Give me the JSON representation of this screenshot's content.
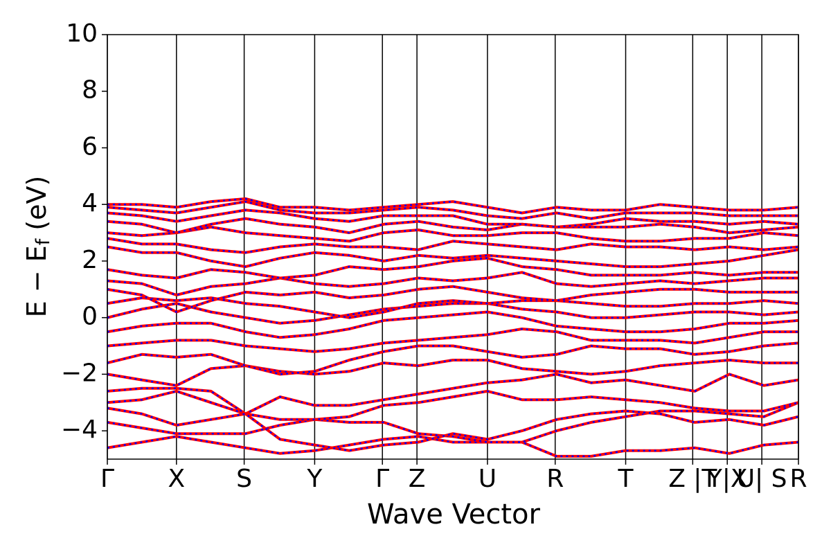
{
  "chart_data": {
    "type": "line",
    "xlabel": "Wave Vector",
    "ylabel": [
      "E − E",
      "f",
      " (eV)"
    ],
    "xlim": [
      0,
      10
    ],
    "ylim": [
      -5,
      10
    ],
    "yticks": [
      {
        "value": -4,
        "label": "−4"
      },
      {
        "value": -2,
        "label": "−2"
      },
      0,
      2,
      4,
      6,
      8,
      10
    ],
    "xticks": [
      {
        "value": 0,
        "label": "Γ"
      },
      {
        "value": 1.0,
        "label": "X"
      },
      {
        "value": 1.98,
        "label": "S"
      },
      {
        "value": 3.0,
        "label": "Y"
      },
      {
        "value": 3.98,
        "label": "Γ"
      },
      {
        "value": 4.48,
        "label": "Z"
      },
      {
        "value": 5.5,
        "label": "U"
      },
      {
        "value": 6.48,
        "label": "R"
      },
      {
        "value": 7.5,
        "label": "T"
      },
      {
        "value": 8.47,
        "label": "Z |T"
      },
      {
        "value": 8.97,
        "label": "Y|X"
      },
      {
        "value": 9.47,
        "label": "U| S"
      },
      {
        "value": 10.0,
        "label": "R"
      }
    ],
    "grid": "x",
    "line_color": "#ff0000",
    "dash_color": "#0000ff",
    "x": [
      0,
      0.5,
      1,
      1.5,
      2,
      2.5,
      3,
      3.5,
      4,
      4.5,
      5,
      5.5,
      6,
      6.5,
      7,
      7.5,
      8,
      8.5,
      9,
      9.5,
      10
    ],
    "bands": [
      {
        "values": [
          -4.6,
          -4.4,
          -4.2,
          -4.4,
          -4.6,
          -4.8,
          -4.7,
          -4.5,
          -4.3,
          -4.2,
          -4.4,
          -4.4,
          -4.4,
          -4.9,
          -4.9,
          -4.7,
          -4.7,
          -4.6,
          -4.8,
          -4.5,
          -4.4
        ]
      },
      {
        "values": [
          -3.7,
          -3.9,
          -4.1,
          -4.1,
          -4.1,
          -3.8,
          -3.6,
          -3.7,
          -3.7,
          -4.1,
          -4.2,
          -4.4,
          -4.4,
          -4.0,
          -3.7,
          -3.5,
          -3.3,
          -3.3,
          -3.4,
          -3.5,
          -3.0
        ]
      },
      {
        "values": [
          -3.0,
          -2.9,
          -2.6,
          -3.0,
          -3.4,
          -3.6,
          -3.6,
          -3.5,
          -3.1,
          -3.0,
          -2.8,
          -2.6,
          -2.9,
          -2.9,
          -2.8,
          -2.9,
          -3.0,
          -3.2,
          -3.3,
          -3.3,
          -3.0
        ]
      },
      {
        "values": [
          -2.6,
          -2.5,
          -2.5,
          -2.6,
          -3.4,
          -2.8,
          -3.1,
          -3.1,
          -2.9,
          -2.7,
          -2.5,
          -2.3,
          -2.2,
          -2.0,
          -2.3,
          -2.2,
          -2.4,
          -2.6,
          -2.0,
          -2.4,
          -2.2
        ]
      },
      {
        "values": [
          -2.0,
          -2.2,
          -2.4,
          -1.8,
          -1.7,
          -1.9,
          -2.0,
          -1.9,
          -1.6,
          -1.7,
          -1.5,
          -1.5,
          -1.8,
          -1.9,
          -2.0,
          -1.9,
          -1.7,
          -1.6,
          -1.5,
          -1.6,
          -1.6
        ]
      },
      {
        "values": [
          -1.6,
          -1.3,
          -1.4,
          -1.3,
          -1.7,
          -2.0,
          -1.9,
          -1.5,
          -1.2,
          -1.0,
          -1.0,
          -1.2,
          -1.4,
          -1.3,
          -1.0,
          -1.1,
          -1.1,
          -1.3,
          -1.2,
          -1.0,
          -0.9
        ]
      },
      {
        "values": [
          -1.0,
          -0.9,
          -0.8,
          -0.8,
          -1.0,
          -1.1,
          -1.2,
          -1.1,
          -0.9,
          -0.8,
          -0.7,
          -0.6,
          -0.4,
          -0.5,
          -0.8,
          -0.8,
          -0.8,
          -0.9,
          -0.7,
          -0.5,
          -0.5
        ]
      },
      {
        "values": [
          -0.5,
          -0.3,
          -0.2,
          -0.2,
          -0.5,
          -0.7,
          -0.6,
          -0.4,
          -0.1,
          0.0,
          0.1,
          0.2,
          0.0,
          -0.3,
          -0.4,
          -0.5,
          -0.5,
          -0.4,
          -0.2,
          -0.2,
          -0.1
        ]
      },
      {
        "values": [
          0.0,
          0.3,
          0.5,
          0.2,
          0.0,
          -0.2,
          -0.1,
          0.1,
          0.3,
          0.4,
          0.5,
          0.5,
          0.3,
          0.2,
          0.0,
          0.0,
          0.1,
          0.2,
          0.2,
          0.1,
          0.2
        ]
      },
      {
        "values": [
          0.5,
          0.7,
          0.6,
          0.7,
          0.5,
          0.4,
          0.2,
          0.0,
          0.2,
          0.5,
          0.6,
          0.5,
          0.6,
          0.6,
          0.5,
          0.4,
          0.4,
          0.5,
          0.5,
          0.6,
          0.5
        ]
      },
      {
        "values": [
          1.0,
          0.8,
          0.2,
          0.6,
          0.9,
          0.8,
          0.9,
          0.7,
          0.8,
          1.0,
          1.1,
          0.9,
          0.7,
          0.6,
          0.8,
          0.9,
          1.0,
          1.0,
          0.9,
          0.9,
          0.9
        ]
      },
      {
        "values": [
          1.3,
          1.2,
          0.8,
          1.1,
          1.2,
          1.4,
          1.2,
          1.1,
          1.2,
          1.4,
          1.3,
          1.4,
          1.6,
          1.2,
          1.1,
          1.2,
          1.3,
          1.2,
          1.3,
          1.4,
          1.4
        ]
      },
      {
        "values": [
          1.7,
          1.5,
          1.4,
          1.7,
          1.6,
          1.4,
          1.5,
          1.8,
          1.7,
          1.8,
          2.0,
          2.1,
          1.8,
          1.7,
          1.5,
          1.5,
          1.5,
          1.6,
          1.5,
          1.6,
          1.6
        ]
      },
      {
        "values": [
          2.5,
          2.3,
          2.3,
          2.0,
          1.8,
          2.1,
          2.3,
          2.2,
          2.0,
          2.2,
          2.1,
          2.2,
          2.1,
          2.0,
          1.9,
          1.8,
          1.8,
          1.9,
          2.0,
          2.2,
          2.4
        ]
      },
      {
        "values": [
          2.8,
          2.6,
          2.6,
          2.4,
          2.3,
          2.5,
          2.6,
          2.5,
          2.5,
          2.4,
          2.7,
          2.6,
          2.5,
          2.4,
          2.6,
          2.5,
          2.5,
          2.4,
          2.5,
          2.4,
          2.5
        ]
      },
      {
        "values": [
          3.0,
          2.9,
          3.0,
          3.2,
          3.0,
          2.9,
          2.8,
          2.7,
          3.0,
          3.1,
          2.9,
          2.9,
          3.0,
          3.0,
          2.8,
          2.7,
          2.7,
          2.8,
          2.8,
          3.0,
          2.9
        ]
      },
      {
        "values": [
          3.4,
          3.3,
          3.0,
          3.3,
          3.5,
          3.3,
          3.2,
          3.0,
          3.3,
          3.4,
          3.2,
          3.1,
          3.3,
          3.2,
          3.2,
          3.2,
          3.3,
          3.2,
          3.0,
          3.1,
          3.2
        ]
      },
      {
        "values": [
          3.7,
          3.6,
          3.4,
          3.6,
          3.8,
          3.7,
          3.5,
          3.4,
          3.6,
          3.6,
          3.6,
          3.3,
          3.3,
          3.2,
          3.3,
          3.5,
          3.4,
          3.4,
          3.3,
          3.4,
          3.3
        ]
      },
      {
        "values": [
          3.9,
          3.8,
          3.7,
          3.9,
          4.1,
          3.8,
          3.7,
          3.7,
          3.8,
          3.9,
          3.8,
          3.6,
          3.5,
          3.7,
          3.5,
          3.7,
          3.7,
          3.7,
          3.6,
          3.6,
          3.6
        ]
      },
      {
        "values": [
          4.0,
          4.0,
          3.9,
          4.1,
          4.2,
          3.9,
          3.9,
          3.8,
          3.9,
          4.0,
          4.1,
          3.9,
          3.7,
          3.9,
          3.8,
          3.8,
          4.0,
          3.9,
          3.8,
          3.8,
          3.9
        ]
      },
      {
        "values": [
          -3.2,
          -3.4,
          -3.8,
          -3.6,
          -3.4,
          -4.3,
          -4.5,
          -4.7,
          -4.5,
          -4.4,
          -4.1,
          -4.3,
          -4.0,
          -3.6,
          -3.4,
          -3.3,
          -3.4,
          -3.7,
          -3.6,
          -3.8,
          -3.5
        ]
      }
    ]
  }
}
